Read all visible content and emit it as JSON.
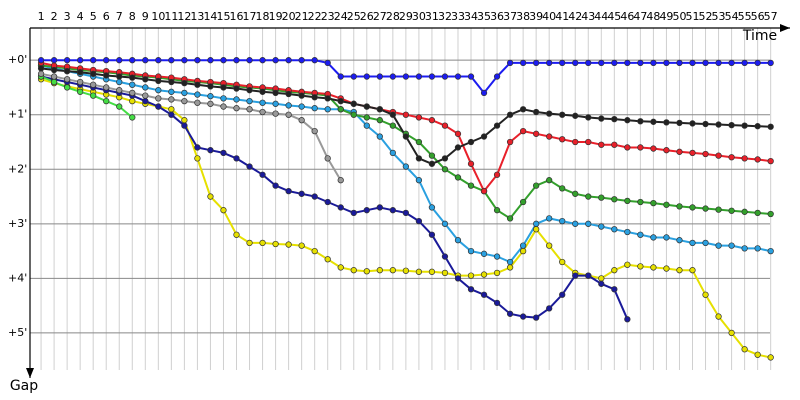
{
  "chart_data": {
    "type": "line",
    "x_label": "Time",
    "y_label": "Gap",
    "x": [
      1,
      2,
      3,
      4,
      5,
      6,
      7,
      8,
      9,
      10,
      11,
      12,
      13,
      14,
      15,
      16,
      17,
      18,
      19,
      20,
      21,
      22,
      23,
      24,
      25,
      26,
      27,
      28,
      29,
      30,
      31,
      32,
      33,
      34,
      35,
      36,
      37,
      38,
      39,
      40,
      41,
      42,
      43,
      44,
      45,
      46,
      47,
      48,
      49,
      50,
      51,
      52,
      53,
      54,
      55,
      56,
      57
    ],
    "xticks": [
      1,
      2,
      3,
      4,
      5,
      6,
      7,
      8,
      9,
      10,
      11,
      12,
      13,
      14,
      15,
      16,
      17,
      18,
      19,
      20,
      21,
      22,
      23,
      24,
      25,
      26,
      27,
      28,
      29,
      30,
      31,
      32,
      33,
      34,
      35,
      36,
      37,
      38,
      39,
      40,
      41,
      42,
      43,
      44,
      45,
      46,
      47,
      48,
      49,
      50,
      51,
      52,
      53,
      54,
      55,
      56,
      57
    ],
    "xlim": [
      0.15,
      58.1
    ],
    "ylim": [
      -0.59,
      5.68
    ],
    "yticks": [
      {
        "value": 0,
        "label": "+0'"
      },
      {
        "value": 1,
        "label": "+1'"
      },
      {
        "value": 2,
        "label": "+2'"
      },
      {
        "value": 3,
        "label": "+3'"
      },
      {
        "value": 4,
        "label": "+4'"
      },
      {
        "value": 5,
        "label": "+5'"
      }
    ],
    "grid": true,
    "series": [
      {
        "color": "#e6e000",
        "values": [
          0.35,
          0.42,
          0.48,
          0.53,
          0.58,
          0.63,
          0.68,
          0.75,
          0.8,
          0.85,
          0.9,
          1.1,
          1.8,
          2.5,
          2.75,
          3.2,
          3.35,
          3.35,
          3.37,
          3.38,
          3.4,
          3.5,
          3.65,
          3.8,
          3.85,
          3.87,
          3.85,
          3.85,
          3.86,
          3.88,
          3.88,
          3.9,
          3.95,
          3.95,
          3.93,
          3.9,
          3.8,
          3.5,
          3.1,
          3.4,
          3.7,
          3.9,
          3.95,
          4.0,
          3.85,
          3.75,
          3.78,
          3.8,
          3.82,
          3.85,
          3.85,
          4.3,
          4.7,
          5.0,
          5.3,
          5.4,
          5.45
        ]
      },
      {
        "color": "#1a1a99",
        "values": [
          0.3,
          0.35,
          0.4,
          0.45,
          0.5,
          0.55,
          0.6,
          0.65,
          0.75,
          0.85,
          1.0,
          1.2,
          1.6,
          1.65,
          1.7,
          1.8,
          1.95,
          2.1,
          2.3,
          2.4,
          2.45,
          2.5,
          2.6,
          2.7,
          2.8,
          2.75,
          2.7,
          2.75,
          2.8,
          2.95,
          3.2,
          3.6,
          4.0,
          4.2,
          4.3,
          4.45,
          4.65,
          4.7,
          4.72,
          4.55,
          4.3,
          3.95,
          3.95,
          4.1,
          4.2,
          4.75,
          null,
          null,
          null,
          null,
          null,
          null,
          null,
          null,
          null,
          null,
          null
        ]
      },
      {
        "color": "#2aa0e0",
        "values": [
          0.1,
          0.15,
          0.2,
          0.25,
          0.3,
          0.35,
          0.4,
          0.45,
          0.5,
          0.55,
          0.58,
          0.6,
          0.63,
          0.66,
          0.7,
          0.72,
          0.75,
          0.78,
          0.8,
          0.83,
          0.85,
          0.88,
          0.9,
          0.9,
          0.95,
          1.2,
          1.4,
          1.7,
          1.95,
          2.2,
          2.7,
          3.0,
          3.3,
          3.5,
          3.55,
          3.6,
          3.7,
          3.4,
          3.0,
          2.9,
          2.95,
          3.0,
          3.0,
          3.05,
          3.1,
          3.15,
          3.2,
          3.25,
          3.25,
          3.3,
          3.35,
          3.35,
          3.4,
          3.4,
          3.45,
          3.45,
          3.5
        ]
      },
      {
        "color": "#33a02c",
        "values": [
          0.1,
          0.12,
          0.15,
          0.18,
          0.2,
          0.22,
          0.25,
          0.28,
          0.3,
          0.32,
          0.35,
          0.38,
          0.4,
          0.42,
          0.45,
          0.48,
          0.5,
          0.52,
          0.55,
          0.58,
          0.6,
          0.62,
          0.65,
          0.9,
          1.0,
          1.05,
          1.1,
          1.2,
          1.35,
          1.5,
          1.75,
          2.0,
          2.15,
          2.3,
          2.4,
          2.75,
          2.9,
          2.6,
          2.3,
          2.2,
          2.35,
          2.45,
          2.5,
          2.52,
          2.55,
          2.58,
          2.6,
          2.62,
          2.65,
          2.68,
          2.7,
          2.72,
          2.74,
          2.76,
          2.78,
          2.8,
          2.82
        ]
      },
      {
        "color": "#e8202a",
        "values": [
          0.05,
          0.1,
          0.12,
          0.15,
          0.18,
          0.2,
          0.22,
          0.25,
          0.28,
          0.3,
          0.32,
          0.35,
          0.38,
          0.4,
          0.42,
          0.45,
          0.48,
          0.5,
          0.52,
          0.55,
          0.58,
          0.6,
          0.62,
          0.7,
          0.8,
          0.85,
          0.9,
          0.95,
          1.0,
          1.05,
          1.1,
          1.2,
          1.35,
          1.9,
          2.4,
          2.1,
          1.5,
          1.3,
          1.35,
          1.4,
          1.45,
          1.5,
          1.5,
          1.55,
          1.55,
          1.6,
          1.6,
          1.62,
          1.65,
          1.68,
          1.7,
          1.72,
          1.75,
          1.78,
          1.8,
          1.82,
          1.85
        ]
      },
      {
        "color": "#222222",
        "values": [
          0.15,
          0.18,
          0.2,
          0.22,
          0.25,
          0.28,
          0.3,
          0.32,
          0.35,
          0.38,
          0.4,
          0.42,
          0.45,
          0.48,
          0.5,
          0.52,
          0.55,
          0.58,
          0.6,
          0.62,
          0.65,
          0.68,
          0.7,
          0.75,
          0.8,
          0.85,
          0.9,
          1.0,
          1.4,
          1.8,
          1.9,
          1.8,
          1.6,
          1.5,
          1.4,
          1.2,
          1.0,
          0.9,
          0.95,
          0.98,
          1.0,
          1.02,
          1.05,
          1.07,
          1.08,
          1.1,
          1.12,
          1.13,
          1.14,
          1.15,
          1.16,
          1.17,
          1.18,
          1.19,
          1.2,
          1.21,
          1.22
        ]
      },
      {
        "color": "#1c1cf0",
        "values": [
          0,
          0,
          0,
          0,
          0,
          0,
          0,
          0,
          0,
          0,
          0,
          0,
          0,
          0,
          0,
          0,
          0,
          0,
          0,
          0,
          0,
          0,
          0.05,
          0.3,
          0.3,
          0.3,
          0.3,
          0.3,
          0.3,
          0.3,
          0.3,
          0.3,
          0.3,
          0.3,
          0.6,
          0.3,
          0.05,
          0.05,
          0.05,
          0.05,
          0.05,
          0.05,
          0.05,
          0.05,
          0.05,
          0.05,
          0.05,
          0.05,
          0.05,
          0.05,
          0.05,
          0.05,
          0.05,
          0.05,
          0.05,
          0.05,
          0.05
        ]
      },
      {
        "color": "#44dd44",
        "values": [
          0.3,
          0.4,
          0.5,
          0.58,
          0.65,
          0.75,
          0.85,
          1.05,
          null,
          null,
          null,
          null,
          null,
          null,
          null,
          null,
          null,
          null,
          null,
          null,
          null,
          null,
          null,
          null,
          null,
          null,
          null,
          null,
          null,
          null,
          null,
          null,
          null,
          null,
          null,
          null,
          null,
          null,
          null,
          null,
          null,
          null,
          null,
          null,
          null,
          null,
          null,
          null,
          null,
          null,
          null,
          null,
          null,
          null,
          null,
          null,
          null
        ]
      },
      {
        "color": "#999999",
        "values": [
          0.25,
          0.3,
          0.35,
          0.4,
          0.45,
          0.5,
          0.55,
          0.6,
          0.65,
          0.7,
          0.72,
          0.75,
          0.78,
          0.8,
          0.85,
          0.88,
          0.9,
          0.95,
          0.98,
          1.0,
          1.1,
          1.3,
          1.8,
          2.2,
          null,
          null,
          null,
          null,
          null,
          null,
          null,
          null,
          null,
          null,
          null,
          null,
          null,
          null,
          null,
          null,
          null,
          null,
          null,
          null,
          null,
          null,
          null,
          null,
          null,
          null,
          null,
          null,
          null,
          null,
          null,
          null,
          null
        ]
      }
    ]
  }
}
